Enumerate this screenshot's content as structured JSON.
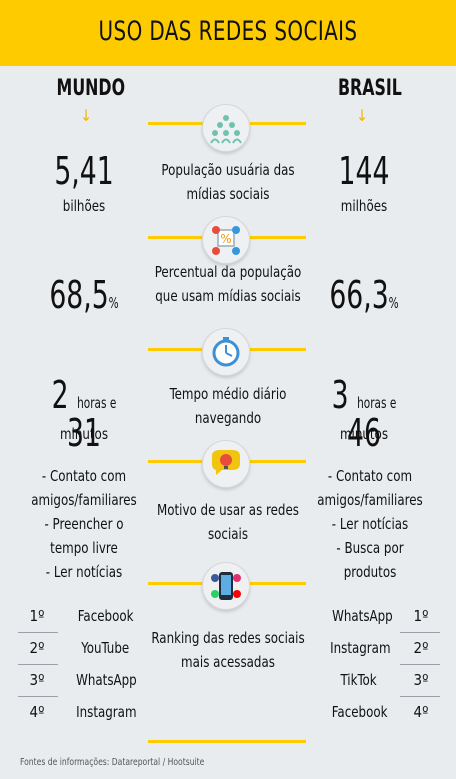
{
  "header": {
    "title": "USO DAS REDES SOCIAIS"
  },
  "columns": {
    "left": "MUNDO",
    "right": "BRASIL",
    "arrow": "↓"
  },
  "population": {
    "label": "População usuária das mídias sociais",
    "world_value": "5,41",
    "world_unit": "bilhões",
    "brazil_value": "144",
    "brazil_unit": "milhões"
  },
  "percent": {
    "label": "Percentual da população que usam mídias sociais",
    "world_value": "68,5",
    "brazil_value": "66,3",
    "suffix": "%"
  },
  "time": {
    "label": "Tempo médio diário navegando",
    "world_hours": "2",
    "world_minutes": "31",
    "brazil_hours": "3",
    "brazil_minutes": "46",
    "hours_word": "horas e",
    "minutes_word": "minutos"
  },
  "motives": {
    "label": "Motivo de usar as redes sociais",
    "world": [
      "- Contato com",
      "amigos/familiares",
      "- Preencher o",
      "tempo livre",
      "- Ler notícias"
    ],
    "brazil": [
      "- Contato com",
      "amigos/familiares",
      "- Ler notícias",
      "- Busca por",
      "produtos"
    ]
  },
  "ranking": {
    "label": "Ranking das redes sociais mais acessadas",
    "positions": [
      "1º",
      "2º",
      "3º",
      "4º"
    ],
    "world": [
      "Facebook",
      "YouTube",
      "WhatsApp",
      "Instagram"
    ],
    "brazil": [
      "WhatsApp",
      "Instagram",
      "TikTok",
      "Facebook"
    ]
  },
  "footer": {
    "source": "Fontes de informações: Datareportal  / Hootsuite"
  },
  "colors": {
    "accent": "#fecb00",
    "arrow": "#f4b400"
  },
  "icons": [
    "people-group-icon",
    "percentage-chart-icon",
    "stopwatch-icon",
    "lightbulb-chat-icon",
    "social-phone-icon"
  ]
}
